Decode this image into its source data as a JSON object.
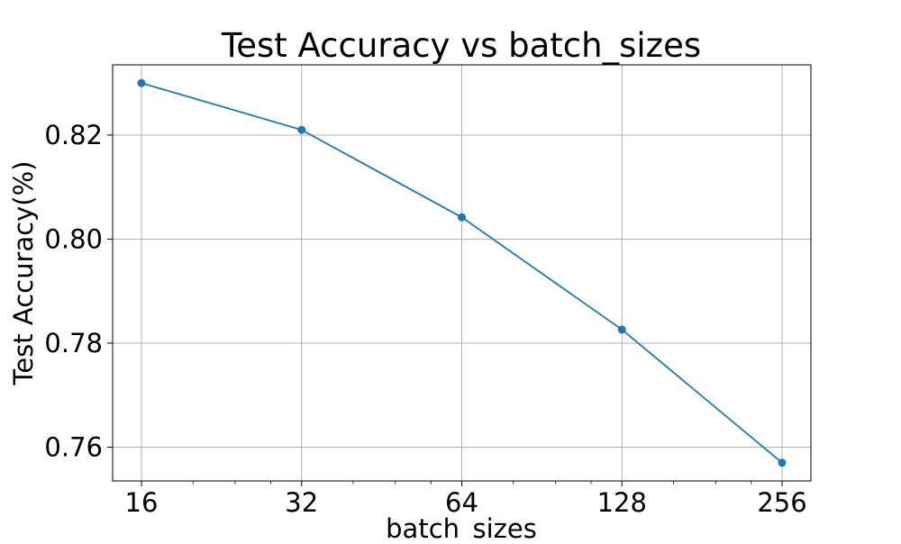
{
  "chart_data": {
    "type": "line",
    "title": "Test Accuracy vs batch_sizes",
    "xlabel": "batch_sizes",
    "ylabel": "Test Accuracy(%)",
    "x_scale": "log2",
    "x": [
      16,
      32,
      64,
      128,
      256
    ],
    "x_tick_labels": [
      "16",
      "32",
      "64",
      "128",
      "256"
    ],
    "y_ticks": [
      0.76,
      0.78,
      0.8,
      0.82
    ],
    "y_tick_labels": [
      "0.76",
      "0.78",
      "0.80",
      "0.82"
    ],
    "ylim": [
      0.7535,
      0.8335
    ],
    "grid": true,
    "series": [
      {
        "values": [
          0.83,
          0.821,
          0.8042,
          0.7826,
          0.757
        ],
        "color": "#1f77b4",
        "marker": "circle"
      }
    ]
  }
}
